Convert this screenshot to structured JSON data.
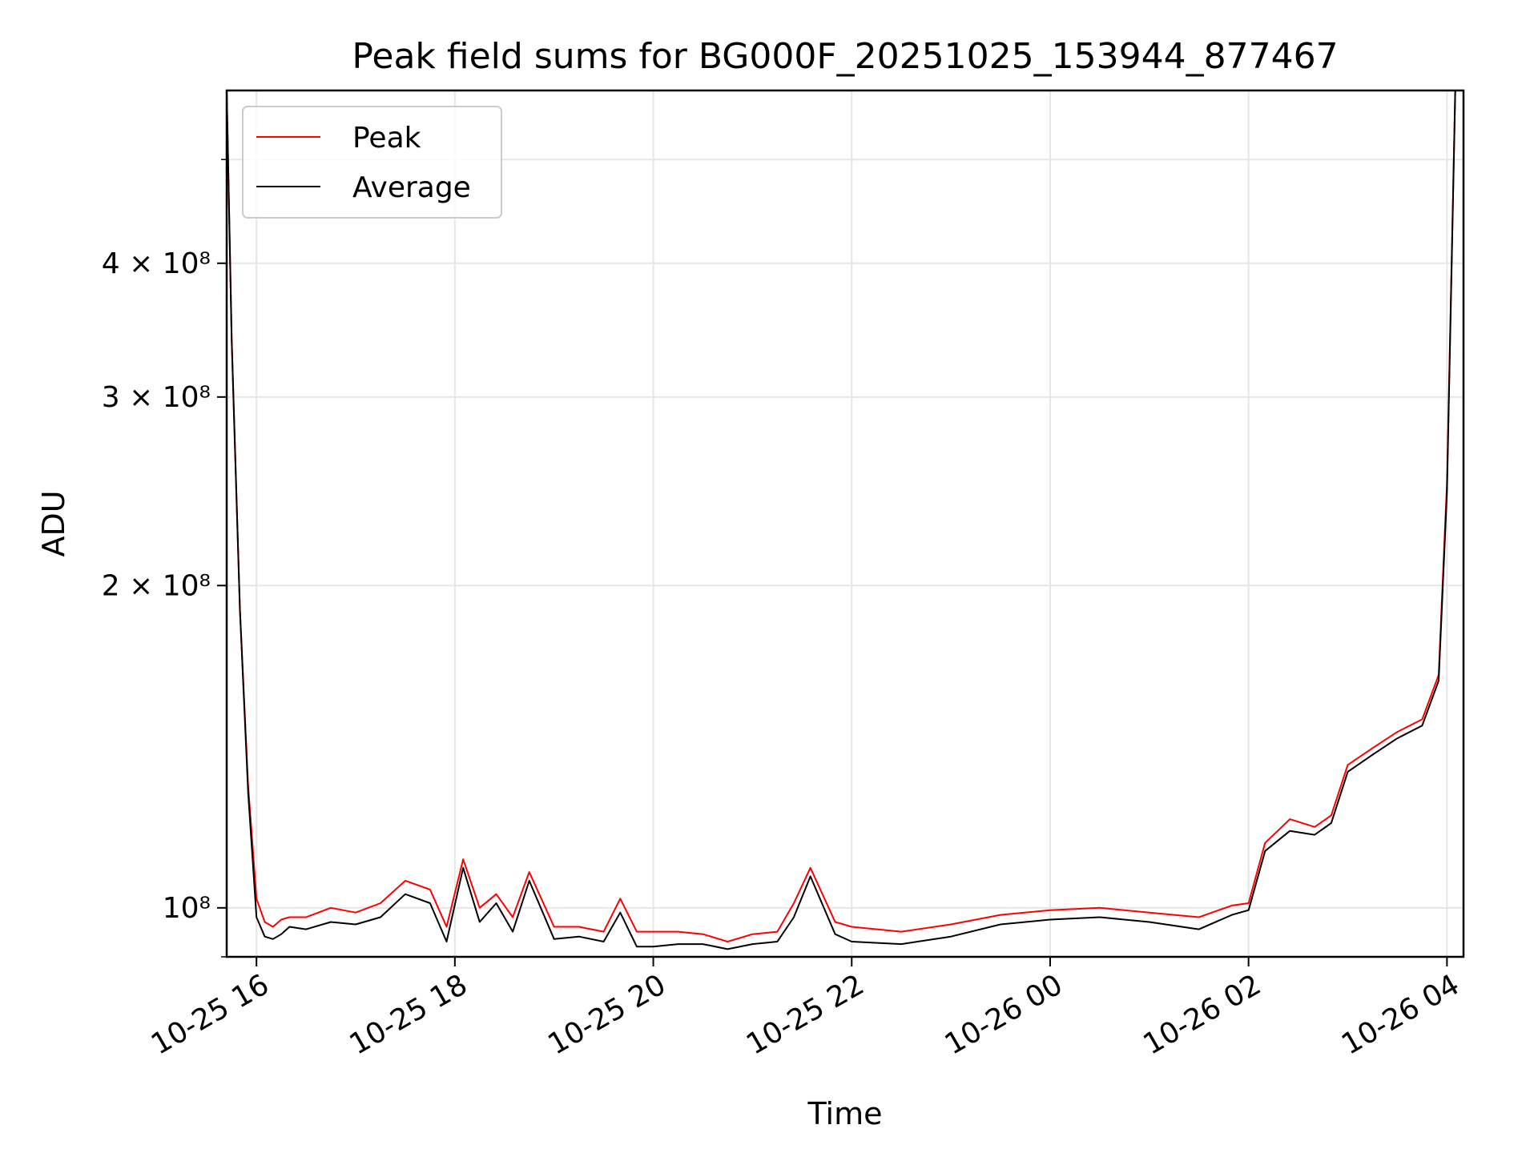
{
  "chart_data": {
    "type": "line",
    "title": "Peak field sums for BG000F_20251025_153944_877467",
    "xlabel": "Time",
    "ylabel": "ADU",
    "y_scale": "log",
    "ylim": [
      90000000,
      580000000
    ],
    "xlim": [
      "2025-10-25 15:42",
      "2025-10-26 04:10"
    ],
    "grid": true,
    "legend_position": "upper-left",
    "x_ticks": [
      {
        "value": "2025-10-25 16:00",
        "label": "10-25 16"
      },
      {
        "value": "2025-10-25 18:00",
        "label": "10-25 18"
      },
      {
        "value": "2025-10-25 20:00",
        "label": "10-25 20"
      },
      {
        "value": "2025-10-25 22:00",
        "label": "10-25 22"
      },
      {
        "value": "2025-10-26 00:00",
        "label": "10-26 00"
      },
      {
        "value": "2025-10-26 02:00",
        "label": "10-26 02"
      },
      {
        "value": "2025-10-26 04:00",
        "label": "10-26 04"
      }
    ],
    "y_ticks": [
      {
        "value": 100000000,
        "label": "10⁸"
      },
      {
        "value": 200000000,
        "label": "2 × 10⁸"
      },
      {
        "value": 300000000,
        "label": "3 × 10⁸"
      },
      {
        "value": 400000000,
        "label": "4 × 10⁸"
      }
    ],
    "series": [
      {
        "name": "Peak",
        "color": "#ff0000",
        "x": [
          "2025-10-25 15:42",
          "2025-10-25 15:45",
          "2025-10-25 15:50",
          "2025-10-25 15:55",
          "2025-10-25 16:00",
          "2025-10-25 16:05",
          "2025-10-25 16:10",
          "2025-10-25 16:15",
          "2025-10-25 16:20",
          "2025-10-25 16:30",
          "2025-10-25 16:45",
          "2025-10-25 17:00",
          "2025-10-25 17:15",
          "2025-10-25 17:30",
          "2025-10-25 17:45",
          "2025-10-25 17:55",
          "2025-10-25 18:05",
          "2025-10-25 18:15",
          "2025-10-25 18:25",
          "2025-10-25 18:35",
          "2025-10-25 18:45",
          "2025-10-25 19:00",
          "2025-10-25 19:15",
          "2025-10-25 19:30",
          "2025-10-25 19:40",
          "2025-10-25 19:50",
          "2025-10-25 20:00",
          "2025-10-25 20:15",
          "2025-10-25 20:30",
          "2025-10-25 20:45",
          "2025-10-25 21:00",
          "2025-10-25 21:15",
          "2025-10-25 21:25",
          "2025-10-25 21:35",
          "2025-10-25 21:50",
          "2025-10-25 22:00",
          "2025-10-25 22:30",
          "2025-10-25 23:00",
          "2025-10-25 23:30",
          "2025-10-26 00:00",
          "2025-10-26 00:30",
          "2025-10-26 01:00",
          "2025-10-26 01:30",
          "2025-10-26 01:50",
          "2025-10-26 02:00",
          "2025-10-26 02:10",
          "2025-10-26 02:25",
          "2025-10-26 02:40",
          "2025-10-26 02:50",
          "2025-10-26 03:00",
          "2025-10-26 03:15",
          "2025-10-26 03:30",
          "2025-10-26 03:45",
          "2025-10-26 03:55",
          "2025-10-26 04:00",
          "2025-10-26 04:05"
        ],
        "values": [
          580000000,
          340000000,
          190000000,
          130000000,
          102000000,
          97000000,
          96000000,
          97500000,
          98000000,
          98000000,
          100000000,
          99000000,
          101000000,
          106000000,
          104000000,
          96000000,
          111000000,
          100000000,
          103000000,
          98000000,
          108000000,
          96000000,
          96000000,
          95000000,
          102000000,
          95000000,
          95000000,
          95000000,
          94500000,
          93000000,
          94500000,
          95000000,
          101000000,
          109000000,
          97000000,
          96000000,
          95000000,
          96500000,
          98500000,
          99500000,
          100000000,
          99000000,
          98000000,
          100500000,
          101000000,
          115000000,
          121000000,
          119000000,
          122000000,
          136000000,
          141000000,
          146000000,
          150000000,
          165000000,
          250000000,
          580000000
        ]
      },
      {
        "name": "Average",
        "color": "#000000",
        "x": [
          "2025-10-25 15:42",
          "2025-10-25 15:45",
          "2025-10-25 15:50",
          "2025-10-25 15:55",
          "2025-10-25 16:00",
          "2025-10-25 16:05",
          "2025-10-25 16:10",
          "2025-10-25 16:15",
          "2025-10-25 16:20",
          "2025-10-25 16:30",
          "2025-10-25 16:45",
          "2025-10-25 17:00",
          "2025-10-25 17:15",
          "2025-10-25 17:30",
          "2025-10-25 17:45",
          "2025-10-25 17:55",
          "2025-10-25 18:05",
          "2025-10-25 18:15",
          "2025-10-25 18:25",
          "2025-10-25 18:35",
          "2025-10-25 18:45",
          "2025-10-25 19:00",
          "2025-10-25 19:15",
          "2025-10-25 19:30",
          "2025-10-25 19:40",
          "2025-10-25 19:50",
          "2025-10-25 20:00",
          "2025-10-25 20:15",
          "2025-10-25 20:30",
          "2025-10-25 20:45",
          "2025-10-25 21:00",
          "2025-10-25 21:15",
          "2025-10-25 21:25",
          "2025-10-25 21:35",
          "2025-10-25 21:50",
          "2025-10-25 22:00",
          "2025-10-25 22:30",
          "2025-10-25 23:00",
          "2025-10-25 23:30",
          "2025-10-26 00:00",
          "2025-10-26 00:30",
          "2025-10-26 01:00",
          "2025-10-26 01:30",
          "2025-10-26 01:50",
          "2025-10-26 02:00",
          "2025-10-26 02:10",
          "2025-10-26 02:25",
          "2025-10-26 02:40",
          "2025-10-26 02:50",
          "2025-10-26 03:00",
          "2025-10-26 03:15",
          "2025-10-26 03:30",
          "2025-10-26 03:45",
          "2025-10-26 03:55",
          "2025-10-26 04:00",
          "2025-10-26 04:05"
        ],
        "values": [
          580000000,
          340000000,
          190000000,
          128000000,
          98000000,
          94000000,
          93500000,
          94500000,
          96000000,
          95500000,
          97000000,
          96500000,
          98000000,
          103000000,
          101000000,
          93000000,
          109000000,
          97000000,
          101000000,
          95000000,
          106000000,
          93500000,
          94000000,
          93000000,
          99000000,
          92000000,
          92000000,
          92500000,
          92500000,
          91500000,
          92500000,
          93000000,
          98000000,
          107000000,
          94500000,
          93000000,
          92500000,
          94000000,
          96500000,
          97500000,
          98000000,
          97000000,
          95500000,
          98500000,
          99500000,
          113000000,
          118000000,
          117000000,
          120000000,
          134000000,
          139000000,
          144000000,
          148000000,
          163000000,
          245000000,
          580000000
        ]
      }
    ]
  }
}
